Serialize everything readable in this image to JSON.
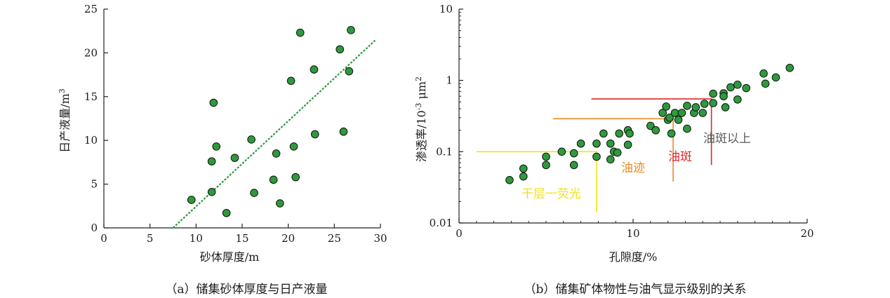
{
  "chart_data": [
    {
      "type": "scatter",
      "caption": "（a）储集砂体厚度与日产液量",
      "xlabel": "砂体厚度/m",
      "ylabel": "日产液量/m³",
      "xlim": [
        0,
        30
      ],
      "ylim": [
        0,
        25
      ],
      "xticks": [
        0,
        5,
        10,
        15,
        20,
        25,
        30
      ],
      "yticks": [
        0,
        5,
        10,
        15,
        20,
        25
      ],
      "point_color": "#2e9a3c",
      "trend_color": "#2f9a3f",
      "points": [
        {
          "x": 9.5,
          "y": 3.2
        },
        {
          "x": 11.7,
          "y": 4.1
        },
        {
          "x": 11.7,
          "y": 7.6
        },
        {
          "x": 11.9,
          "y": 14.3
        },
        {
          "x": 12.2,
          "y": 9.3
        },
        {
          "x": 13.3,
          "y": 1.7
        },
        {
          "x": 14.2,
          "y": 8.0
        },
        {
          "x": 16.0,
          "y": 10.1
        },
        {
          "x": 16.3,
          "y": 4.0
        },
        {
          "x": 18.4,
          "y": 5.5
        },
        {
          "x": 18.7,
          "y": 8.5
        },
        {
          "x": 19.1,
          "y": 2.8
        },
        {
          "x": 20.3,
          "y": 16.8
        },
        {
          "x": 20.6,
          "y": 9.3
        },
        {
          "x": 20.8,
          "y": 5.8
        },
        {
          "x": 21.3,
          "y": 22.3
        },
        {
          "x": 22.8,
          "y": 18.1
        },
        {
          "x": 22.9,
          "y": 10.7
        },
        {
          "x": 25.6,
          "y": 20.4
        },
        {
          "x": 26.0,
          "y": 11.0
        },
        {
          "x": 26.6,
          "y": 17.9
        },
        {
          "x": 26.8,
          "y": 22.6
        }
      ],
      "trendline": [
        {
          "x": 7.5,
          "y": 0.0
        },
        {
          "x": 29.5,
          "y": 21.5
        }
      ]
    },
    {
      "type": "scatter",
      "caption": "（b）储集矿体物性与油气显示级别的关系",
      "xlabel": "孔隙度/%",
      "ylabel_main": "渗透率/10",
      "ylabel_exp": "-3",
      "ylabel_unit": " μm",
      "ylabel_exp2": "2",
      "yscale": "log",
      "xlim": [
        0,
        20
      ],
      "ylim": [
        0.01,
        10
      ],
      "xticks": [
        0,
        10,
        20
      ],
      "yticks": [
        {
          "value": 0.01,
          "label": "0.01"
        },
        {
          "value": 0.1,
          "label": "0.1"
        },
        {
          "value": 1,
          "label": "1"
        },
        {
          "value": 10,
          "label": "10"
        }
      ],
      "point_color": "#2e9a3c",
      "points": [
        {
          "x": 2.9,
          "y": 0.04
        },
        {
          "x": 3.7,
          "y": 0.045
        },
        {
          "x": 3.7,
          "y": 0.058
        },
        {
          "x": 5.0,
          "y": 0.065
        },
        {
          "x": 5.0,
          "y": 0.085
        },
        {
          "x": 5.9,
          "y": 0.1
        },
        {
          "x": 6.6,
          "y": 0.065
        },
        {
          "x": 6.6,
          "y": 0.095
        },
        {
          "x": 7.0,
          "y": 0.13
        },
        {
          "x": 7.9,
          "y": 0.085
        },
        {
          "x": 7.9,
          "y": 0.13
        },
        {
          "x": 8.3,
          "y": 0.18
        },
        {
          "x": 8.7,
          "y": 0.13
        },
        {
          "x": 8.7,
          "y": 0.078
        },
        {
          "x": 8.9,
          "y": 0.1
        },
        {
          "x": 9.1,
          "y": 0.097
        },
        {
          "x": 9.2,
          "y": 0.18
        },
        {
          "x": 9.7,
          "y": 0.2
        },
        {
          "x": 9.7,
          "y": 0.125
        },
        {
          "x": 9.8,
          "y": 0.18
        },
        {
          "x": 11.0,
          "y": 0.23
        },
        {
          "x": 11.3,
          "y": 0.2
        },
        {
          "x": 11.7,
          "y": 0.35
        },
        {
          "x": 11.9,
          "y": 0.43
        },
        {
          "x": 12.0,
          "y": 0.28
        },
        {
          "x": 12.1,
          "y": 0.3
        },
        {
          "x": 12.2,
          "y": 0.18
        },
        {
          "x": 12.4,
          "y": 0.35
        },
        {
          "x": 12.6,
          "y": 0.28
        },
        {
          "x": 12.8,
          "y": 0.35
        },
        {
          "x": 13.1,
          "y": 0.44
        },
        {
          "x": 13.1,
          "y": 0.21
        },
        {
          "x": 13.5,
          "y": 0.35
        },
        {
          "x": 13.6,
          "y": 0.42
        },
        {
          "x": 14.0,
          "y": 0.35
        },
        {
          "x": 14.1,
          "y": 0.47
        },
        {
          "x": 14.6,
          "y": 0.48
        },
        {
          "x": 14.6,
          "y": 0.65
        },
        {
          "x": 15.2,
          "y": 0.66
        },
        {
          "x": 15.2,
          "y": 0.6
        },
        {
          "x": 15.3,
          "y": 0.42
        },
        {
          "x": 15.6,
          "y": 0.8
        },
        {
          "x": 16.0,
          "y": 0.87
        },
        {
          "x": 16.0,
          "y": 0.54
        },
        {
          "x": 16.5,
          "y": 0.78
        },
        {
          "x": 17.5,
          "y": 1.25
        },
        {
          "x": 17.6,
          "y": 0.9
        },
        {
          "x": 18.2,
          "y": 1.1
        },
        {
          "x": 19.0,
          "y": 1.5
        }
      ],
      "thresholds": [
        {
          "name": "干层一荧光",
          "color": "#f2e21a",
          "x_start": 1.0,
          "x_end": 7.9,
          "y": 0.1,
          "y_drop": 0.014
        },
        {
          "name": "油迹",
          "color": "#ec8a26",
          "x_start": 5.4,
          "x_end": 12.3,
          "y": 0.29,
          "y_drop": 0.038
        },
        {
          "name": "油斑",
          "color": "#e0262b",
          "x_start": 7.6,
          "x_end": 14.5,
          "y": 0.55,
          "y_drop": 0.065
        }
      ],
      "annotations": [
        {
          "text": "干层一荧光",
          "color": "#f2e21a",
          "x": 5.3,
          "y": 0.0225
        },
        {
          "text": "油迹",
          "color": "#ec8a26",
          "x": 10.0,
          "y": 0.052
        },
        {
          "text": "油斑",
          "color": "#e0262b",
          "x": 12.7,
          "y": 0.075
        },
        {
          "text": "油斑以上",
          "color": "#5a5a5a",
          "x": 15.4,
          "y": 0.136
        }
      ]
    }
  ]
}
